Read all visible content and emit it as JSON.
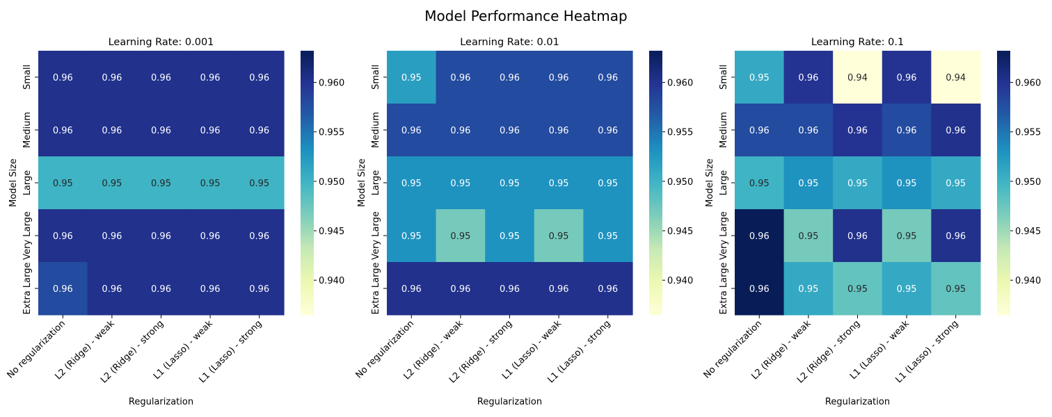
{
  "figure": {
    "title": "Model Performance Heatmap"
  },
  "chart_data": [
    {
      "type": "heatmap",
      "title": "Learning Rate: 0.001",
      "xlabel": "Regularization",
      "ylabel": "Model Size",
      "x_categories": [
        "No regularization",
        "L2 (Ridge) - weak",
        "L2 (Ridge) - strong",
        "L1 (Lasso) - weak",
        "L1 (Lasso) - strong"
      ],
      "y_categories": [
        "Small",
        "Medium",
        "Large",
        "Very Large",
        "Extra Large"
      ],
      "values": [
        [
          0.9603,
          0.9603,
          0.9603,
          0.9603,
          0.9603
        ],
        [
          0.9603,
          0.9603,
          0.9603,
          0.9603,
          0.9603
        ],
        [
          0.95,
          0.95,
          0.95,
          0.95,
          0.95
        ],
        [
          0.9603,
          0.9603,
          0.9603,
          0.9603,
          0.9603
        ],
        [
          0.958,
          0.9603,
          0.9603,
          0.9603,
          0.9603
        ]
      ],
      "labels": [
        [
          "0.96",
          "0.96",
          "0.96",
          "0.96",
          "0.96"
        ],
        [
          "0.96",
          "0.96",
          "0.96",
          "0.96",
          "0.96"
        ],
        [
          "0.95",
          "0.95",
          "0.95",
          "0.95",
          "0.95"
        ],
        [
          "0.96",
          "0.96",
          "0.96",
          "0.96",
          "0.96"
        ],
        [
          "0.96",
          "0.96",
          "0.96",
          "0.96",
          "0.96"
        ]
      ],
      "vmin": 0.9365,
      "vmax": 0.9632,
      "colorbar_ticks": [
        0.94,
        0.945,
        0.95,
        0.955,
        0.96
      ],
      "colorbar_tick_labels": [
        "0.940",
        "0.945",
        "0.950",
        "0.955",
        "0.960"
      ],
      "colormap": "YlGnBu"
    },
    {
      "type": "heatmap",
      "title": "Learning Rate: 0.01",
      "xlabel": "Regularization",
      "ylabel": "Model Size",
      "x_categories": [
        "No regularization",
        "L2 (Ridge) - weak",
        "L2 (Ridge) - strong",
        "L1 (Lasso) - weak",
        "L1 (Lasso) - strong"
      ],
      "y_categories": [
        "Small",
        "Medium",
        "Large",
        "Very Large",
        "Extra Large"
      ],
      "values": [
        [
          0.952,
          0.958,
          0.958,
          0.958,
          0.958
        ],
        [
          0.958,
          0.958,
          0.958,
          0.958,
          0.958
        ],
        [
          0.953,
          0.953,
          0.953,
          0.953,
          0.953
        ],
        [
          0.953,
          0.947,
          0.953,
          0.947,
          0.953
        ],
        [
          0.9603,
          0.9603,
          0.9603,
          0.9603,
          0.9603
        ]
      ],
      "labels": [
        [
          "0.95",
          "0.96",
          "0.96",
          "0.96",
          "0.96"
        ],
        [
          "0.96",
          "0.96",
          "0.96",
          "0.96",
          "0.96"
        ],
        [
          "0.95",
          "0.95",
          "0.95",
          "0.95",
          "0.95"
        ],
        [
          "0.95",
          "0.95",
          "0.95",
          "0.95",
          "0.95"
        ],
        [
          "0.96",
          "0.96",
          "0.96",
          "0.96",
          "0.96"
        ]
      ],
      "vmin": 0.9365,
      "vmax": 0.9632,
      "colorbar_ticks": [
        0.94,
        0.945,
        0.95,
        0.955,
        0.96
      ],
      "colorbar_tick_labels": [
        "0.940",
        "0.945",
        "0.950",
        "0.955",
        "0.960"
      ],
      "colormap": "YlGnBu"
    },
    {
      "type": "heatmap",
      "title": "Learning Rate: 0.1",
      "xlabel": "Regularization",
      "ylabel": "Model Size",
      "x_categories": [
        "No regularization",
        "L2 (Ridge) - weak",
        "L2 (Ridge) - strong",
        "L1 (Lasso) - weak",
        "L1 (Lasso) - strong"
      ],
      "y_categories": [
        "Small",
        "Medium",
        "Large",
        "Very Large",
        "Extra Large"
      ],
      "values": [
        [
          0.951,
          0.96,
          0.9365,
          0.96,
          0.9365
        ],
        [
          0.958,
          0.958,
          0.96,
          0.958,
          0.9603
        ],
        [
          0.95,
          0.953,
          0.951,
          0.953,
          0.951
        ],
        [
          0.9632,
          0.947,
          0.9603,
          0.947,
          0.9603
        ],
        [
          0.9632,
          0.951,
          0.948,
          0.951,
          0.948
        ]
      ],
      "labels": [
        [
          "0.95",
          "0.96",
          "0.94",
          "0.96",
          "0.94"
        ],
        [
          "0.96",
          "0.96",
          "0.96",
          "0.96",
          "0.96"
        ],
        [
          "0.95",
          "0.95",
          "0.95",
          "0.95",
          "0.95"
        ],
        [
          "0.96",
          "0.95",
          "0.96",
          "0.95",
          "0.96"
        ],
        [
          "0.96",
          "0.95",
          "0.95",
          "0.95",
          "0.95"
        ]
      ],
      "vmin": 0.9365,
      "vmax": 0.9632,
      "colorbar_ticks": [
        0.94,
        0.945,
        0.95,
        0.955,
        0.96
      ],
      "colorbar_tick_labels": [
        "0.940",
        "0.945",
        "0.950",
        "0.955",
        "0.960"
      ],
      "colormap": "YlGnBu"
    }
  ]
}
